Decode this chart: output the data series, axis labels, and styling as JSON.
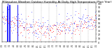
{
  "title": "Milwaukee Weather Outdoor Humidity At Daily High Temperature (Past Year)",
  "title_fontsize": 3.0,
  "bg_color": "#ffffff",
  "plot_bg_color": "#ffffff",
  "grid_color": "#999999",
  "ylim": [
    0,
    100
  ],
  "yticks": [
    0,
    10,
    20,
    30,
    40,
    50,
    60,
    70,
    80,
    90,
    100
  ],
  "n_points": 365,
  "seed": 42,
  "blue_color": "#0000ff",
  "red_color": "#ff0000",
  "marker_size": 0.8,
  "n_gridlines": 11
}
